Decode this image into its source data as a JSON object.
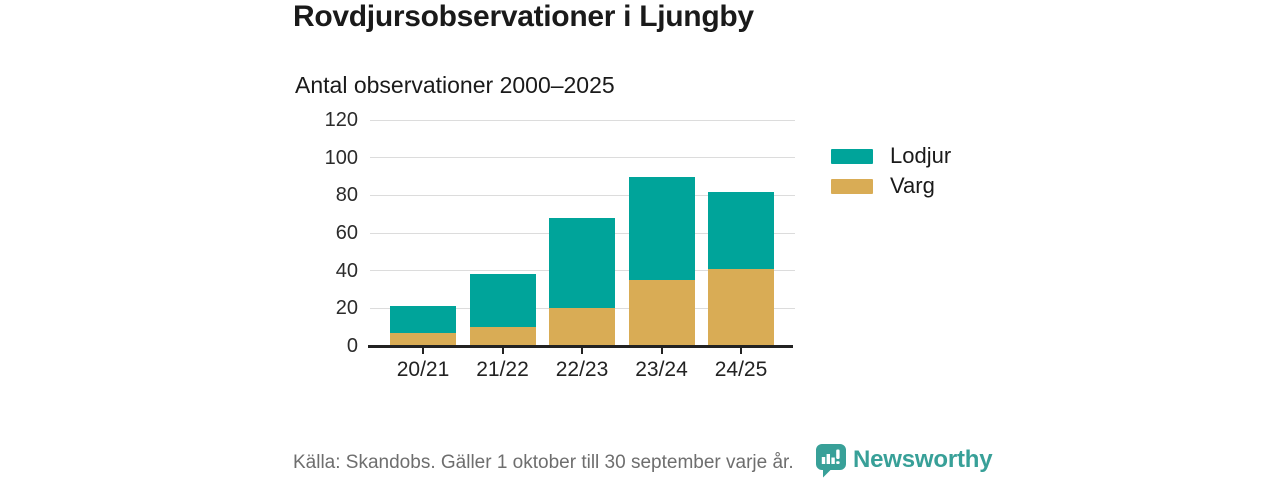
{
  "title": "Rovdjursobservationer i Ljungby",
  "subtitle": "Antal observationer 2000–2025",
  "legend": {
    "items": [
      {
        "label": "Lodjur",
        "color_key": "lodjur"
      },
      {
        "label": "Varg",
        "color_key": "varg"
      }
    ]
  },
  "footer": {
    "source": "Källa: Skandobs. Gäller 1 oktober till 30 september varje år.",
    "brand": "Newsworthy"
  },
  "colors": {
    "lodjur": "#00a49a",
    "varg": "#d9ac55",
    "gridline": "#dcdcdc",
    "axis": "#222222",
    "text": "#1a1a1a",
    "muted": "#6e6e6e",
    "brand": "#38a098"
  },
  "chart_data": {
    "type": "bar",
    "stacked": true,
    "title": "Rovdjursobservationer i Ljungby",
    "subtitle": "Antal observationer 2000–2025",
    "categories": [
      "20/21",
      "21/22",
      "22/23",
      "23/24",
      "24/25"
    ],
    "series": [
      {
        "name": "Varg",
        "color_key": "varg",
        "values": [
          7,
          10,
          20,
          35,
          41
        ]
      },
      {
        "name": "Lodjur",
        "color_key": "lodjur",
        "values": [
          14,
          28,
          48,
          55,
          41
        ]
      }
    ],
    "totals": [
      21,
      38,
      68,
      90,
      82
    ],
    "xlabel": "",
    "ylabel": "",
    "ylim": [
      0,
      120
    ],
    "yticks": [
      0,
      20,
      40,
      60,
      80,
      100,
      120
    ],
    "grid": true,
    "legend_position": "right"
  }
}
